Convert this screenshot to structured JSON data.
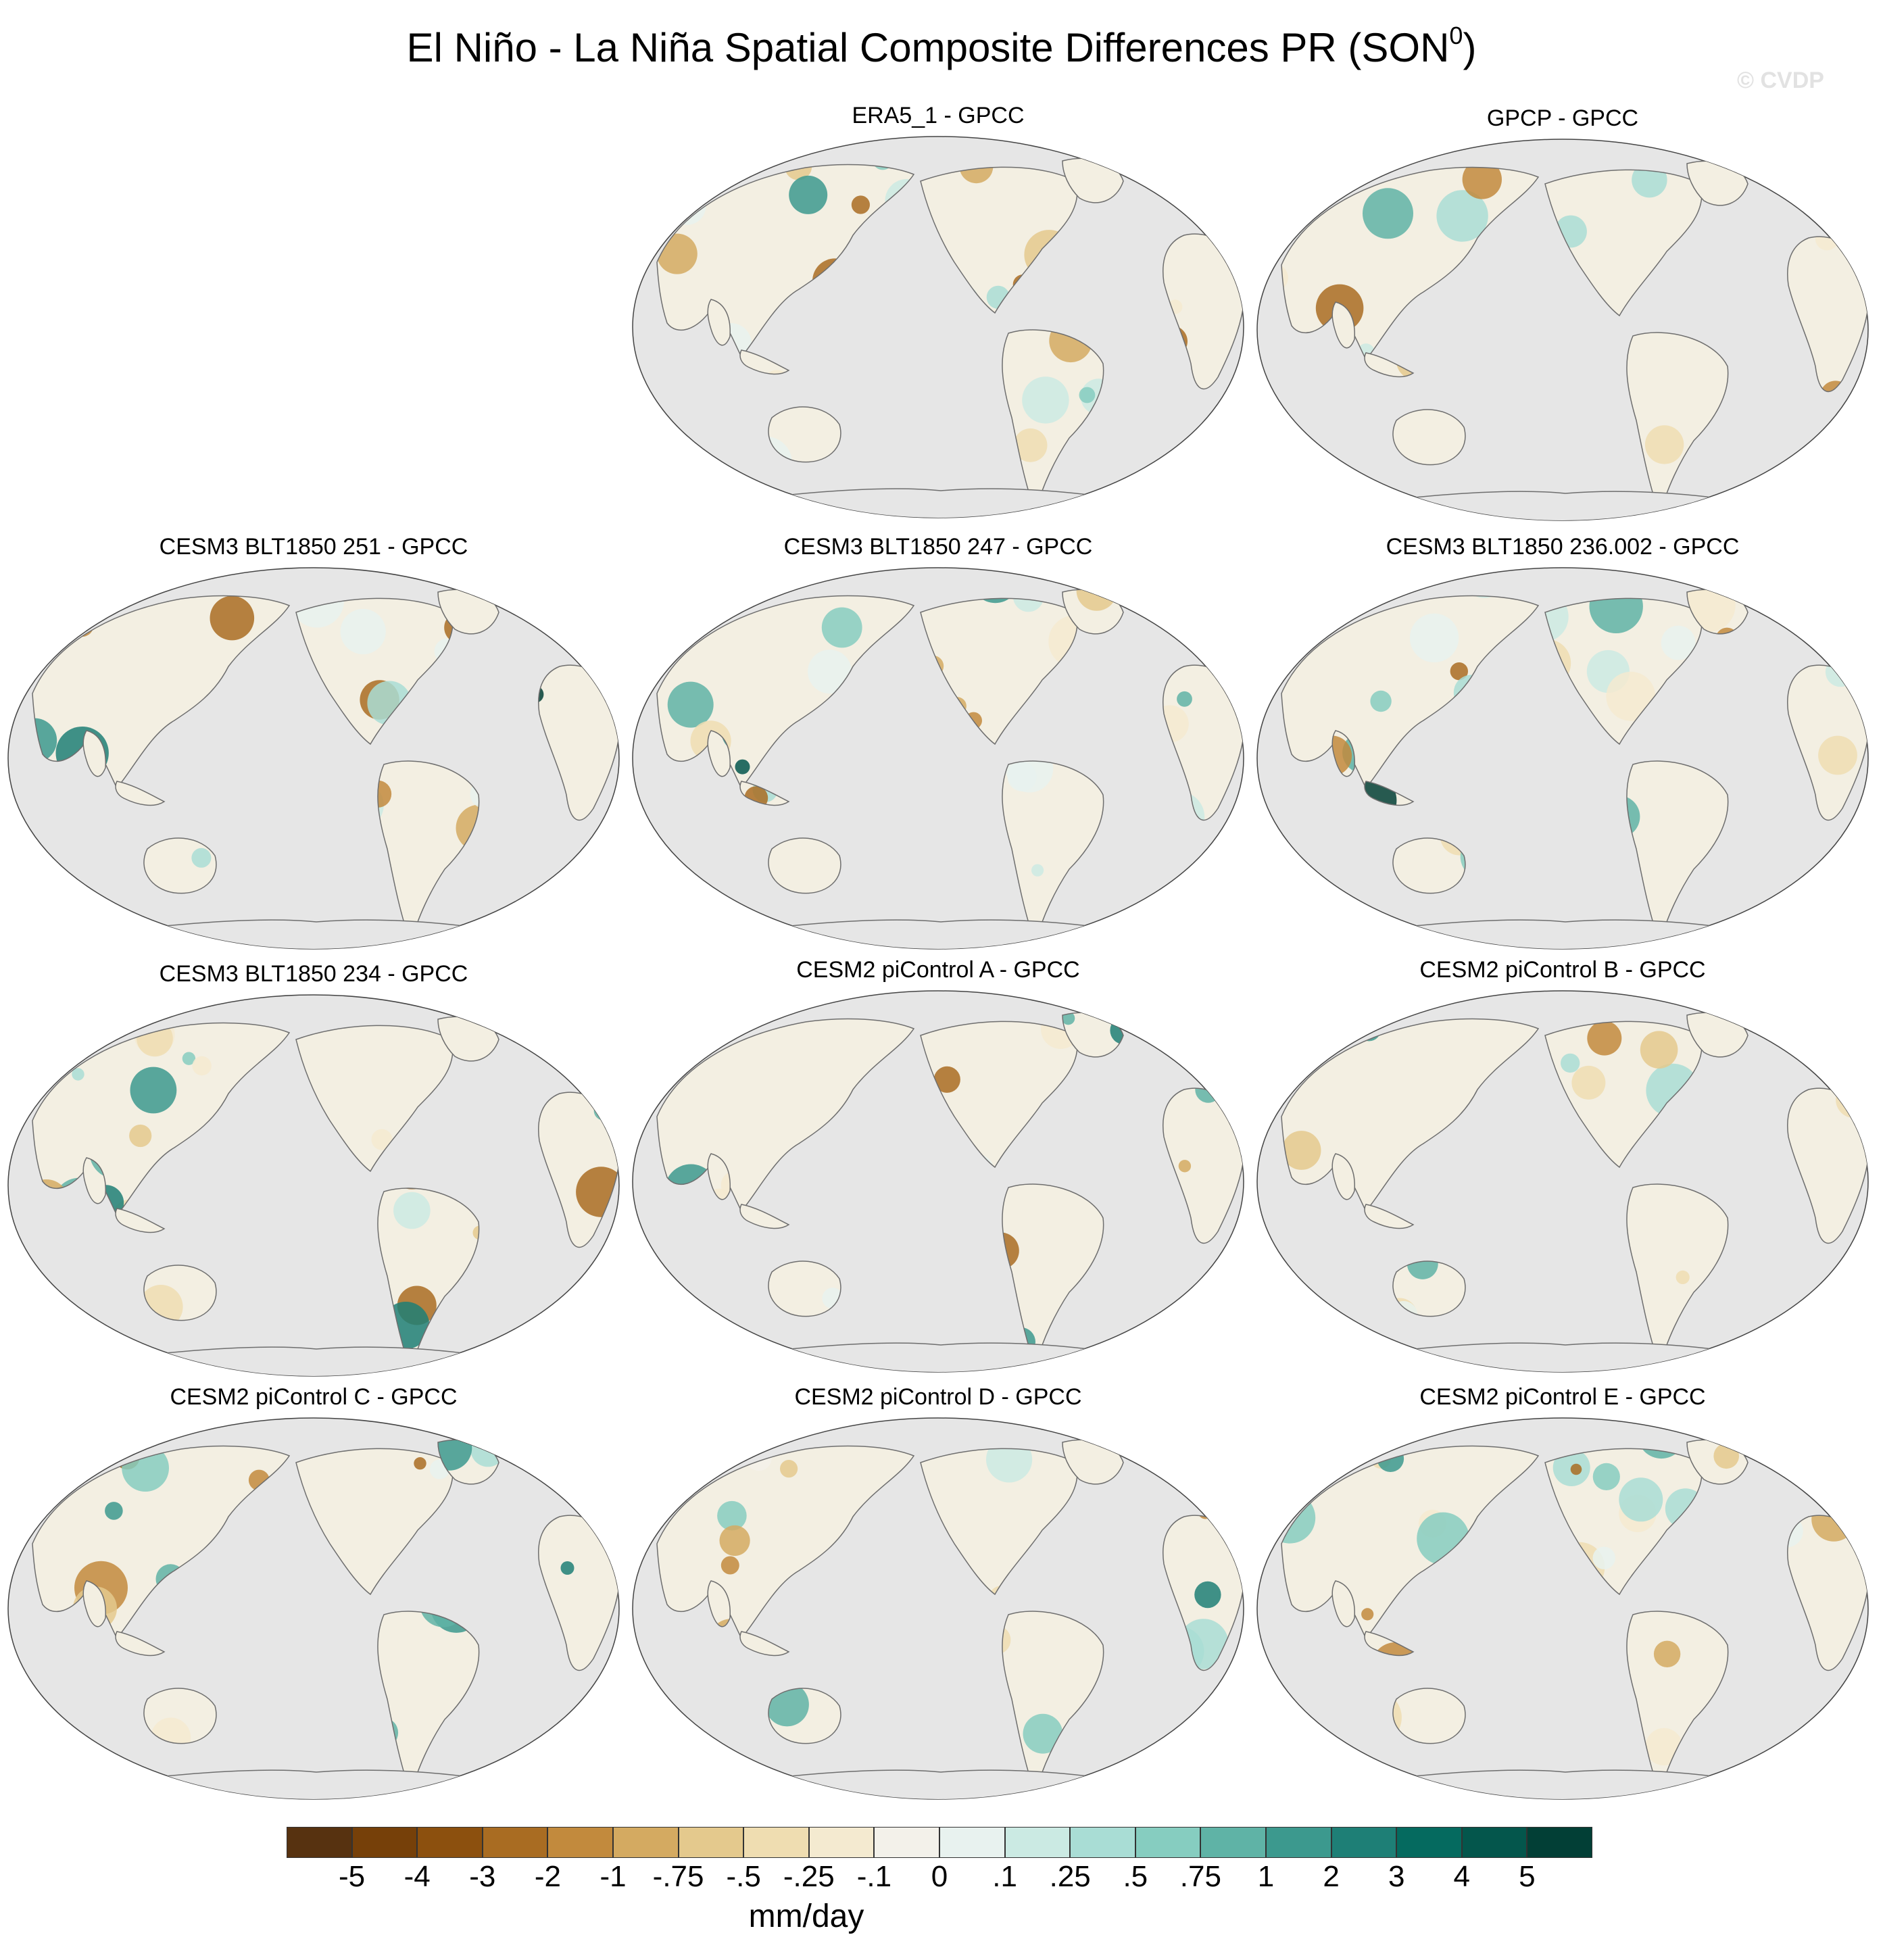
{
  "title": {
    "main": "El Niño - La Niña Spatial Composite Differences PR (SON",
    "superscript": "0",
    "close": ")"
  },
  "copyright": "© CVDP",
  "panels": [
    {
      "label": "ERA5_1 - GPCC",
      "variant": 0
    },
    {
      "label": "GPCP - GPCC",
      "variant": 1
    },
    {
      "label": "CESM3 BLT1850 251 - GPCC",
      "variant": 2
    },
    {
      "label": "CESM3 BLT1850 247 - GPCC",
      "variant": 3
    },
    {
      "label": "CESM3 BLT1850 236.002 - GPCC",
      "variant": 4
    },
    {
      "label": "CESM3 BLT1850 234 - GPCC",
      "variant": 5
    },
    {
      "label": "CESM2 piControl A - GPCC",
      "variant": 6
    },
    {
      "label": "CESM2 piControl B - GPCC",
      "variant": 7
    },
    {
      "label": "CESM2 piControl C - GPCC",
      "variant": 8
    },
    {
      "label": "CESM2 piControl D - GPCC",
      "variant": 9
    },
    {
      "label": "CESM2 piControl E - GPCC",
      "variant": 10
    }
  ],
  "colorbar": {
    "units": "mm/day",
    "ticks": [
      "-5",
      "-4",
      "-3",
      "-2",
      "-1",
      "-.75",
      "-.5",
      "-.25",
      "-.1",
      "0",
      ".1",
      ".25",
      ".5",
      ".75",
      "1",
      "2",
      "3",
      "4",
      "5"
    ],
    "colors": [
      "#573210",
      "#764009",
      "#8c500e",
      "#a96c22",
      "#c28a3d",
      "#d4aa61",
      "#e4c98d",
      "#efddb1",
      "#f4ead0",
      "#f3f1ea",
      "#e8f2ef",
      "#cbeae3",
      "#a9ddd5",
      "#86cdc0",
      "#5fb3a6",
      "#3c998e",
      "#1e7f76",
      "#056a5f",
      "#04564c",
      "#023f36"
    ]
  },
  "map_colors": {
    "ocean": "#e6e6e6",
    "coast": "#6e6e6e"
  }
}
